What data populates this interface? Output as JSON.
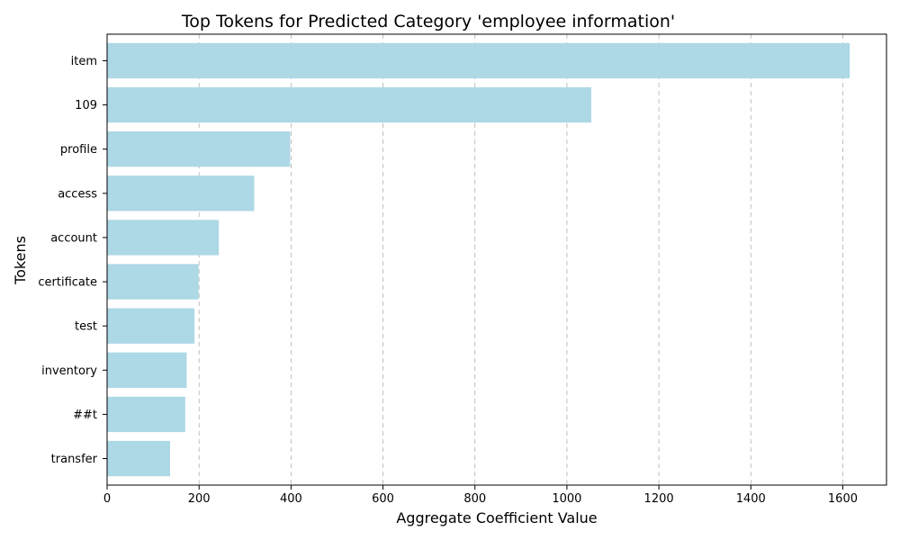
{
  "chart_data": {
    "type": "bar",
    "orientation": "horizontal",
    "title": "Top Tokens for Predicted Category 'employee information'",
    "xlabel": "Aggregate Coefficient Value",
    "ylabel": "Tokens",
    "categories": [
      "item",
      "109",
      "profile",
      "access",
      "account",
      "certificate",
      "test",
      "inventory",
      "##t",
      "transfer"
    ],
    "values": [
      1615,
      1053,
      398,
      320,
      243,
      199,
      190,
      173,
      170,
      137
    ],
    "xlim": [
      0,
      1695
    ],
    "xticks": [
      0,
      200,
      400,
      600,
      800,
      1000,
      1200,
      1400,
      1600
    ],
    "grid": "x-dashed",
    "bar_color": "#add8e6"
  }
}
